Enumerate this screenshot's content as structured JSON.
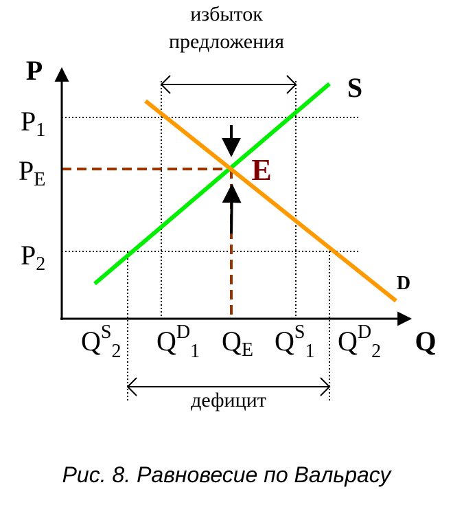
{
  "header": {
    "surplus_lines": [
      "избыток",
      "предложения"
    ]
  },
  "axes": {
    "y": "P",
    "x": "Q"
  },
  "curves": {
    "supply": "S",
    "demand": "D"
  },
  "equilibrium": "E",
  "price_labels": [
    {
      "base": "P",
      "sub": "1"
    },
    {
      "base": "P",
      "sub": "E"
    },
    {
      "base": "P",
      "sub": "2"
    }
  ],
  "quantity_labels": [
    {
      "base": "Q",
      "sup": "S",
      "sub": "2"
    },
    {
      "base": "Q",
      "sup": "D",
      "sub": "1"
    },
    {
      "base": "Q",
      "sub": "E"
    },
    {
      "base": "Q",
      "sup": "S",
      "sub": "1"
    },
    {
      "base": "Q",
      "sup": "D",
      "sub": "2"
    }
  ],
  "deficit": "дефицит",
  "caption": "Рис. 8. Равновесие по Вальрасу"
}
